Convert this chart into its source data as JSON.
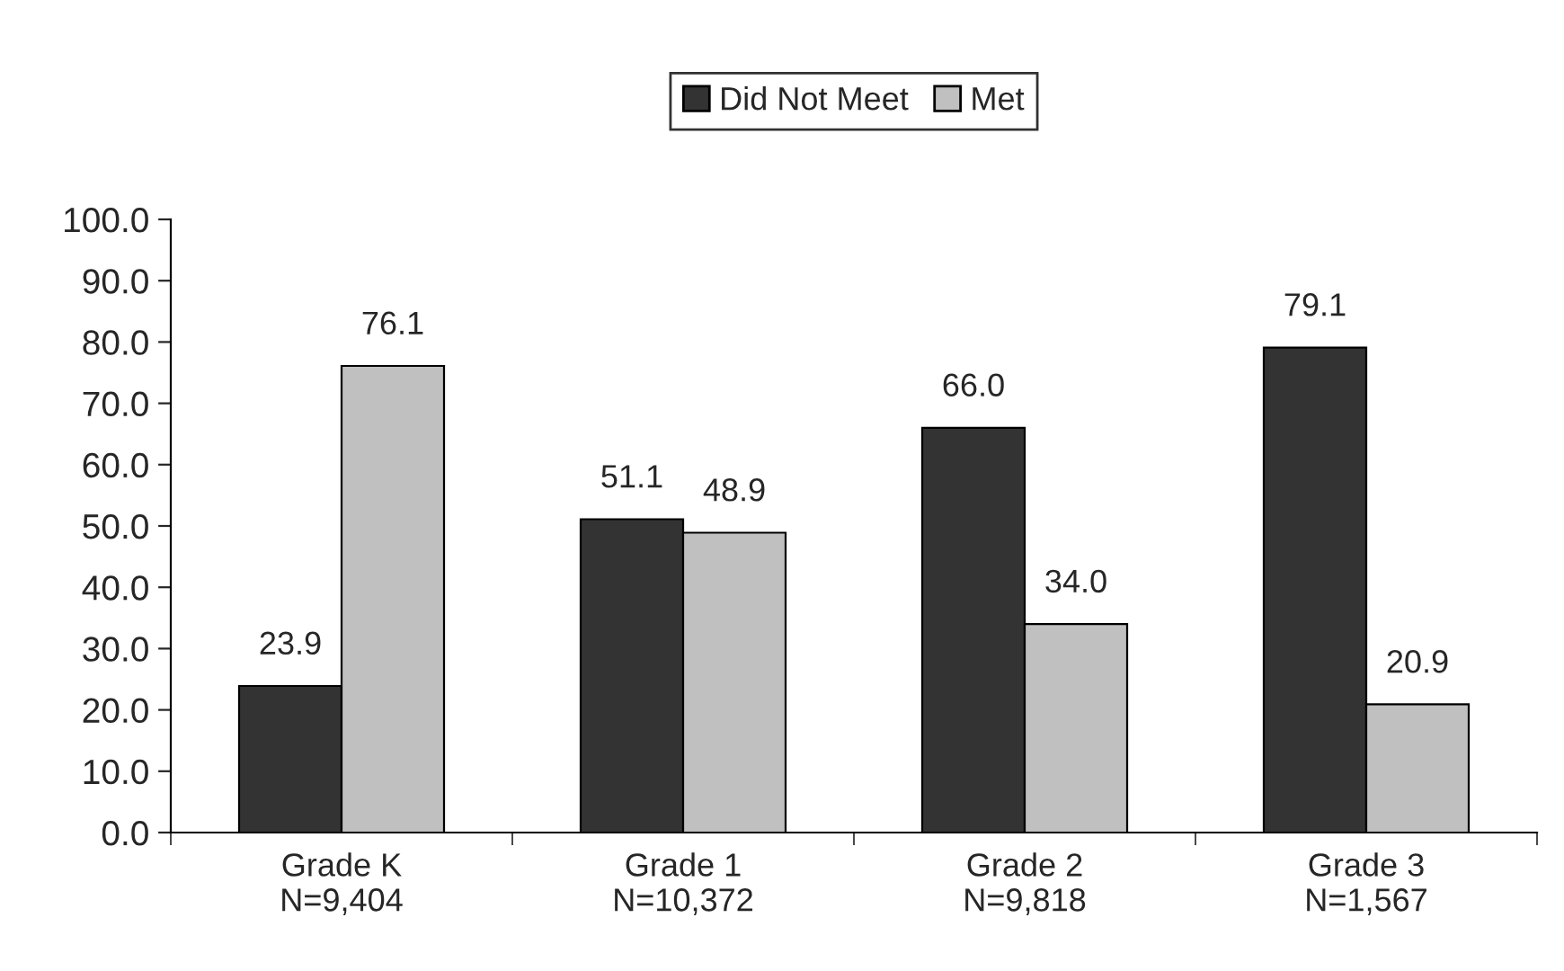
{
  "chart_data": {
    "type": "bar",
    "categories": [
      "Grade K\nN=9,404",
      "Grade 1\nN=10,372",
      "Grade 2\nN=9,818",
      "Grade 3\nN=1,567"
    ],
    "series": [
      {
        "name": "Did Not Meet",
        "color": "#333333",
        "values": [
          23.9,
          51.1,
          66.0,
          79.1
        ],
        "value_labels": [
          "23.9",
          "51.1",
          "66.0",
          "79.1"
        ]
      },
      {
        "name": "Met",
        "color": "#c0c0c0",
        "values": [
          76.1,
          48.9,
          34.0,
          20.9
        ],
        "value_labels": [
          "76.1",
          "48.9",
          "34.0",
          "20.9"
        ]
      }
    ],
    "ylim": [
      0,
      100
    ],
    "yticks": [
      {
        "value": 0,
        "label": "0.0"
      },
      {
        "value": 10,
        "label": "10.0"
      },
      {
        "value": 20,
        "label": "20.0"
      },
      {
        "value": 30,
        "label": "30.0"
      },
      {
        "value": 40,
        "label": "40.0"
      },
      {
        "value": 50,
        "label": "50.0"
      },
      {
        "value": 60,
        "label": "60.0"
      },
      {
        "value": 70,
        "label": "70.0"
      },
      {
        "value": 80,
        "label": "80.0"
      },
      {
        "value": 90,
        "label": "90.0"
      },
      {
        "value": 100,
        "label": "100.0"
      }
    ],
    "grid": false,
    "legend": "top"
  }
}
